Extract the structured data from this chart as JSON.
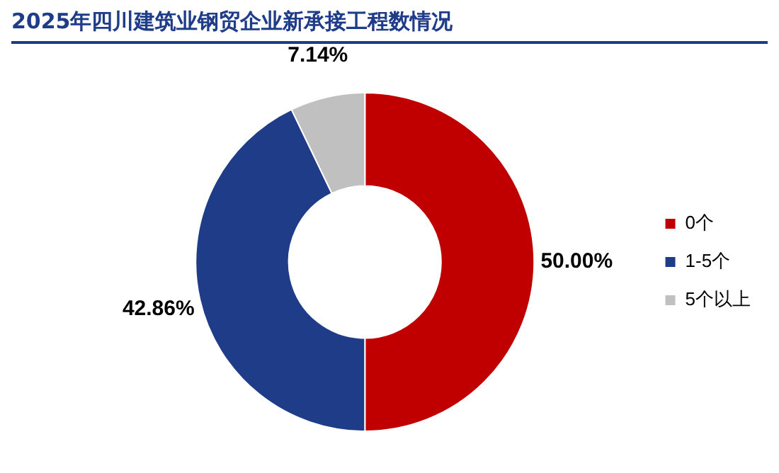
{
  "chart_data": {
    "type": "donut",
    "title": "2025年四川建筑业钢贸企业新承接工程数情况",
    "categories": [
      "0个",
      "1-5个",
      "5个以上"
    ],
    "values": [
      50.0,
      42.86,
      7.14
    ],
    "value_labels": [
      "50.00%",
      "42.86%",
      "7.14%"
    ],
    "colors": [
      "#c00000",
      "#1f3c88",
      "#c0c0c0"
    ],
    "legend": "right"
  }
}
